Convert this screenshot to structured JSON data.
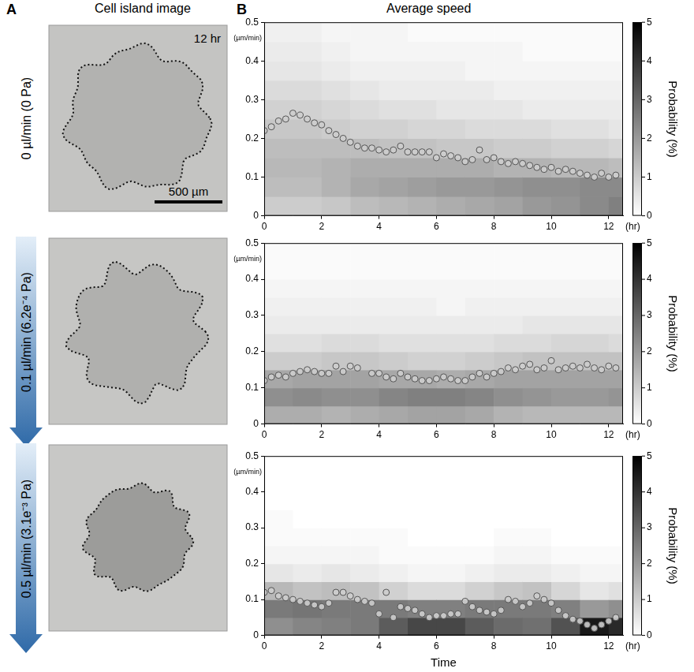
{
  "panels": [
    {
      "letter": "A",
      "title": "Cell island image"
    },
    {
      "letter": "B",
      "title": "Average speed"
    }
  ],
  "images": [
    {
      "label": "0 µl/min (0 Pa)",
      "time": "12 hr",
      "scale_bar": "500 µm"
    },
    {
      "label": "0.1 µl/min (6.2e⁻⁴ Pa)"
    },
    {
      "label": "0.5 µl/min (3.1e⁻³ Pa)"
    }
  ],
  "chart_data": [
    {
      "type": "scatter",
      "marker": "circle",
      "color": "#555555",
      "grid": false,
      "xlabel": "(hr)",
      "ylabel": "(µm/min)",
      "xlim": [
        0,
        12.5
      ],
      "xticks": [
        0,
        2,
        4,
        6,
        8,
        10,
        12
      ],
      "ylim": [
        0,
        0.5
      ],
      "yticks": [
        0,
        0.1,
        0.2,
        0.3,
        0.4,
        0.5
      ],
      "x": [
        0,
        0.25,
        0.5,
        0.75,
        1,
        1.25,
        1.5,
        1.75,
        2,
        2.25,
        2.5,
        2.75,
        3,
        3.25,
        3.5,
        3.75,
        4,
        4.25,
        4.5,
        4.75,
        5,
        5.25,
        5.5,
        5.75,
        6,
        6.25,
        6.5,
        6.75,
        7,
        7.25,
        7.5,
        7.75,
        8,
        8.25,
        8.5,
        8.75,
        9,
        9.25,
        9.5,
        9.75,
        10,
        10.25,
        10.5,
        10.75,
        11,
        11.25,
        11.5,
        11.75,
        12,
        12.25
      ],
      "values": [
        0.22,
        0.23,
        0.245,
        0.25,
        0.265,
        0.26,
        0.25,
        0.24,
        0.235,
        0.22,
        0.21,
        0.2,
        0.19,
        0.18,
        0.175,
        0.175,
        0.17,
        0.165,
        0.17,
        0.18,
        0.165,
        0.165,
        0.165,
        0.165,
        0.15,
        0.16,
        0.155,
        0.15,
        0.14,
        0.145,
        0.17,
        0.145,
        0.15,
        0.14,
        0.135,
        0.14,
        0.135,
        0.13,
        0.125,
        0.12,
        0.125,
        0.115,
        0.12,
        0.115,
        0.11,
        0.105,
        0.1,
        0.11,
        0.1,
        0.105
      ],
      "heatmap": {
        "time_edges": [
          0,
          1,
          2,
          3,
          4,
          5,
          6,
          7,
          8,
          9,
          10,
          11,
          12,
          12.5
        ],
        "speed_edges": [
          0,
          0.05,
          0.1,
          0.15,
          0.2,
          0.25,
          0.3,
          0.35,
          0.4,
          0.45,
          0.5
        ],
        "probability": [
          [
            1.0,
            1.3,
            1.4,
            1.3,
            1.1,
            0.9,
            0.7,
            0.5,
            0.4,
            0.3
          ],
          [
            1.0,
            1.3,
            1.4,
            1.3,
            1.1,
            0.9,
            0.7,
            0.5,
            0.4,
            0.3
          ],
          [
            1.1,
            1.5,
            1.5,
            1.3,
            1.0,
            0.8,
            0.6,
            0.4,
            0.3,
            0.2
          ],
          [
            1.3,
            1.7,
            1.6,
            1.3,
            0.9,
            0.7,
            0.5,
            0.3,
            0.2,
            0.2
          ],
          [
            1.4,
            1.8,
            1.6,
            1.2,
            0.9,
            0.6,
            0.4,
            0.3,
            0.2,
            0.2
          ],
          [
            1.5,
            1.9,
            1.6,
            1.2,
            0.8,
            0.6,
            0.4,
            0.3,
            0.2,
            0.1
          ],
          [
            1.6,
            2.0,
            1.6,
            1.1,
            0.8,
            0.5,
            0.4,
            0.3,
            0.2,
            0.1
          ],
          [
            1.7,
            2.0,
            1.6,
            1.1,
            0.7,
            0.5,
            0.4,
            0.2,
            0.2,
            0.1
          ],
          [
            1.8,
            2.1,
            1.5,
            1.0,
            0.7,
            0.5,
            0.3,
            0.2,
            0.2,
            0.1
          ],
          [
            2.0,
            2.2,
            1.5,
            1.0,
            0.7,
            0.4,
            0.3,
            0.2,
            0.1,
            0.1
          ],
          [
            2.1,
            2.2,
            1.4,
            0.9,
            0.6,
            0.4,
            0.3,
            0.2,
            0.1,
            0.1
          ],
          [
            2.3,
            2.3,
            1.4,
            0.9,
            0.6,
            0.4,
            0.3,
            0.2,
            0.1,
            0.1
          ],
          [
            2.5,
            2.3,
            1.3,
            0.8,
            0.5,
            0.4,
            0.3,
            0.2,
            0.1,
            0.1
          ]
        ],
        "colorbar": {
          "range": [
            0,
            5
          ],
          "ticks": [
            0,
            1,
            2,
            3,
            4,
            5
          ],
          "label": "Probability (%)"
        }
      }
    },
    {
      "type": "scatter",
      "marker": "circle",
      "color": "#555555",
      "grid": false,
      "xlabel": "(hr)",
      "ylabel": "(µm/min)",
      "xlim": [
        0,
        12.5
      ],
      "xticks": [
        0,
        2,
        4,
        6,
        8,
        10,
        12
      ],
      "ylim": [
        0,
        0.5
      ],
      "yticks": [
        0,
        0.1,
        0.2,
        0.3,
        0.4,
        0.5
      ],
      "x": [
        0,
        0.25,
        0.5,
        0.75,
        1,
        1.25,
        1.5,
        1.75,
        2,
        2.25,
        2.5,
        2.75,
        3,
        3.25,
        3.5,
        3.75,
        4,
        4.25,
        4.5,
        4.75,
        5,
        5.25,
        5.5,
        5.75,
        6,
        6.25,
        6.5,
        6.75,
        7,
        7.25,
        7.5,
        7.75,
        8,
        8.25,
        8.5,
        8.75,
        9,
        9.25,
        9.5,
        9.75,
        10,
        10.25,
        10.5,
        10.75,
        11,
        11.25,
        11.5,
        11.75,
        12,
        12.25
      ],
      "values": [
        0.12,
        0.13,
        0.135,
        0.13,
        0.14,
        0.145,
        0.15,
        0.145,
        0.14,
        0.14,
        0.16,
        0.145,
        0.16,
        0.155,
        null,
        0.14,
        0.14,
        0.13,
        0.125,
        0.14,
        0.13,
        0.125,
        0.12,
        0.12,
        0.125,
        0.13,
        0.125,
        0.12,
        0.12,
        0.13,
        0.14,
        0.13,
        0.14,
        0.145,
        0.155,
        0.15,
        0.16,
        0.165,
        0.15,
        0.155,
        0.175,
        0.15,
        0.155,
        0.16,
        0.155,
        0.165,
        0.155,
        0.15,
        0.16,
        0.155
      ],
      "heatmap": {
        "time_edges": [
          0,
          1,
          2,
          3,
          4,
          5,
          6,
          7,
          8,
          9,
          10,
          11,
          12,
          12.5
        ],
        "speed_edges": [
          0,
          0.05,
          0.1,
          0.15,
          0.2,
          0.25,
          0.3,
          0.35,
          0.4,
          0.45,
          0.5
        ],
        "probability": [
          [
            1.6,
            2.2,
            1.7,
            1.0,
            0.6,
            0.4,
            0.3,
            0.2,
            0.1,
            0.1
          ],
          [
            1.6,
            2.3,
            1.8,
            1.0,
            0.6,
            0.4,
            0.3,
            0.2,
            0.1,
            0.1
          ],
          [
            1.5,
            2.2,
            1.8,
            1.1,
            0.7,
            0.4,
            0.3,
            0.2,
            0.1,
            0.1
          ],
          [
            1.6,
            2.2,
            1.8,
            1.1,
            0.7,
            0.4,
            0.3,
            0.2,
            0.1,
            0.1
          ],
          [
            1.7,
            2.4,
            1.7,
            1.0,
            0.6,
            0.4,
            0.3,
            0.2,
            0.1,
            0.1
          ],
          [
            1.8,
            2.5,
            1.7,
            0.9,
            0.6,
            0.4,
            0.3,
            0.2,
            0.1,
            0.1
          ],
          [
            1.8,
            2.5,
            1.6,
            0.9,
            0.6,
            0.4,
            0.2,
            0.2,
            0.1,
            0.1
          ],
          [
            1.7,
            2.4,
            1.7,
            1.0,
            0.6,
            0.4,
            0.3,
            0.2,
            0.1,
            0.1
          ],
          [
            1.5,
            2.2,
            1.8,
            1.1,
            0.7,
            0.4,
            0.3,
            0.2,
            0.1,
            0.1
          ],
          [
            1.4,
            2.1,
            1.8,
            1.2,
            0.7,
            0.5,
            0.3,
            0.2,
            0.1,
            0.1
          ],
          [
            1.4,
            2.0,
            1.8,
            1.2,
            0.8,
            0.5,
            0.3,
            0.2,
            0.1,
            0.1
          ],
          [
            1.4,
            2.0,
            1.8,
            1.2,
            0.8,
            0.5,
            0.3,
            0.2,
            0.1,
            0.1
          ],
          [
            1.4,
            2.1,
            1.8,
            1.2,
            0.7,
            0.5,
            0.3,
            0.2,
            0.1,
            0.1
          ]
        ],
        "colorbar": {
          "range": [
            0,
            5
          ],
          "ticks": [
            0,
            1,
            2,
            3,
            4,
            5
          ],
          "label": "Probability (%)"
        }
      }
    },
    {
      "type": "scatter",
      "marker": "circle",
      "color": "#555555",
      "grid": false,
      "xlabel": "(hr)",
      "ylabel": "(µm/min)",
      "x_title": "Time",
      "xlim": [
        0,
        12.5
      ],
      "xticks": [
        0,
        2,
        4,
        6,
        8,
        10,
        12
      ],
      "ylim": [
        0,
        0.5
      ],
      "yticks": [
        0,
        0.1,
        0.2,
        0.3,
        0.4,
        0.5
      ],
      "x": [
        0,
        0.25,
        0.5,
        0.75,
        1,
        1.25,
        1.5,
        1.75,
        2,
        2.25,
        2.5,
        2.75,
        3,
        3.25,
        3.5,
        3.75,
        4,
        4.25,
        4.5,
        4.75,
        5,
        5.25,
        5.5,
        5.75,
        6,
        6.25,
        6.5,
        6.75,
        7,
        7.25,
        7.5,
        7.75,
        8,
        8.25,
        8.5,
        8.75,
        9,
        9.25,
        9.5,
        9.75,
        10,
        10.25,
        10.5,
        10.75,
        11,
        11.25,
        11.5,
        11.75,
        12,
        12.25
      ],
      "values": [
        0.12,
        0.125,
        0.11,
        0.105,
        0.1,
        0.095,
        0.09,
        0.085,
        0.08,
        0.09,
        0.12,
        0.12,
        0.11,
        0.1,
        0.095,
        0.09,
        0.06,
        0.12,
        0.05,
        0.08,
        0.075,
        0.07,
        0.06,
        0.05,
        0.055,
        0.055,
        0.06,
        0.06,
        0.095,
        0.08,
        0.07,
        0.065,
        0.06,
        0.07,
        0.1,
        0.095,
        0.08,
        0.09,
        0.11,
        0.1,
        0.09,
        0.07,
        0.055,
        0.045,
        0.04,
        0.03,
        0.02,
        0.03,
        0.04,
        0.05
      ],
      "heatmap": {
        "time_edges": [
          0,
          1,
          2,
          3,
          4,
          5,
          6,
          7,
          8,
          9,
          10,
          11,
          12,
          12.5
        ],
        "speed_edges": [
          0,
          0.05,
          0.1,
          0.15,
          0.2,
          0.25,
          0.3,
          0.35,
          0.4,
          0.45,
          0.5
        ],
        "probability": [
          [
            2.2,
            2.6,
            1.4,
            0.5,
            0.2,
            0.1,
            0.1,
            0,
            0,
            0
          ],
          [
            2.4,
            2.7,
            1.2,
            0.4,
            0.2,
            0.1,
            0,
            0,
            0,
            0
          ],
          [
            2.5,
            2.6,
            1.3,
            0.5,
            0.2,
            0.1,
            0,
            0,
            0,
            0
          ],
          [
            2.6,
            2.6,
            1.2,
            0.4,
            0.2,
            0.1,
            0,
            0,
            0,
            0
          ],
          [
            3.2,
            2.6,
            0.9,
            0.3,
            0.1,
            0.1,
            0,
            0,
            0,
            0
          ],
          [
            3.6,
            2.5,
            0.7,
            0.2,
            0.1,
            0,
            0,
            0,
            0,
            0
          ],
          [
            3.6,
            2.5,
            0.7,
            0.2,
            0.1,
            0,
            0,
            0,
            0,
            0
          ],
          [
            3.2,
            2.6,
            0.9,
            0.3,
            0.1,
            0,
            0,
            0,
            0,
            0
          ],
          [
            2.9,
            2.6,
            1.1,
            0.4,
            0.2,
            0.1,
            0,
            0,
            0,
            0
          ],
          [
            2.8,
            2.6,
            1.2,
            0.4,
            0.2,
            0.1,
            0,
            0,
            0,
            0
          ],
          [
            3.4,
            2.5,
            0.8,
            0.3,
            0.1,
            0,
            0,
            0,
            0,
            0
          ],
          [
            4.5,
            2.0,
            0.5,
            0.2,
            0.1,
            0,
            0,
            0,
            0,
            0
          ],
          [
            4.2,
            2.2,
            0.6,
            0.2,
            0.1,
            0,
            0,
            0,
            0,
            0
          ]
        ],
        "colorbar": {
          "range": [
            0,
            5
          ],
          "ticks": [
            0,
            1,
            2,
            3,
            4,
            5
          ],
          "label": "Probability (%)"
        }
      }
    }
  ]
}
